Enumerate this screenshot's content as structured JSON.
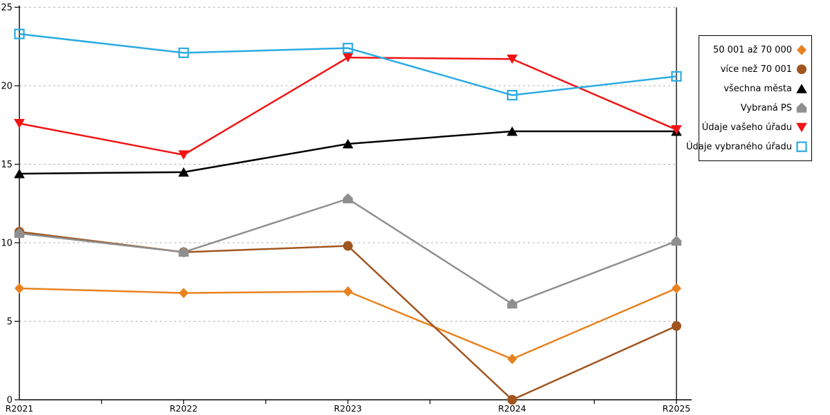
{
  "page": {
    "background": "#ffffff"
  },
  "chart_data": {
    "type": "line",
    "title": "",
    "xlabel": "",
    "ylabel": "",
    "categories": [
      "R2021",
      "R2022",
      "R2023",
      "R2024",
      "R2025"
    ],
    "series": [
      {
        "name": "50 001 až 70 000",
        "marker": "diamond",
        "color": "#E8821E",
        "values": [
          7.1,
          6.8,
          6.9,
          2.6,
          7.1
        ]
      },
      {
        "name": "více než 70 001",
        "marker": "circle",
        "color": "#A0551E",
        "values": [
          10.7,
          9.4,
          9.8,
          0.0,
          4.7
        ]
      },
      {
        "name": "všechna města",
        "marker": "triangle-up",
        "color": "#000000",
        "values": [
          14.4,
          14.5,
          16.3,
          17.1,
          17.1
        ]
      },
      {
        "name": "Vybraná PS",
        "marker": "pentagon",
        "color": "#8F8F8F",
        "values": [
          10.6,
          9.4,
          12.8,
          6.1,
          10.1
        ]
      },
      {
        "name": "Údaje vašeho úřadu",
        "marker": "triangle-down",
        "color": "#F01414",
        "values": [
          17.6,
          15.6,
          21.8,
          21.7,
          17.2
        ]
      },
      {
        "name": "Údaje vybraného úřadu",
        "marker": "open-square",
        "color": "#29ABE2",
        "values": [
          23.3,
          22.1,
          22.4,
          19.4,
          20.6
        ]
      }
    ],
    "y_axis": {
      "min": 0,
      "max": 25,
      "step": 5,
      "ticks": [
        "0",
        "5",
        "10",
        "15",
        "20",
        "25"
      ]
    },
    "grid": {
      "horizontal": "dashed",
      "color": "#B3B3B3"
    },
    "axis_color": "#000000",
    "legend_position": "right",
    "legend_border_color": "#000000"
  }
}
